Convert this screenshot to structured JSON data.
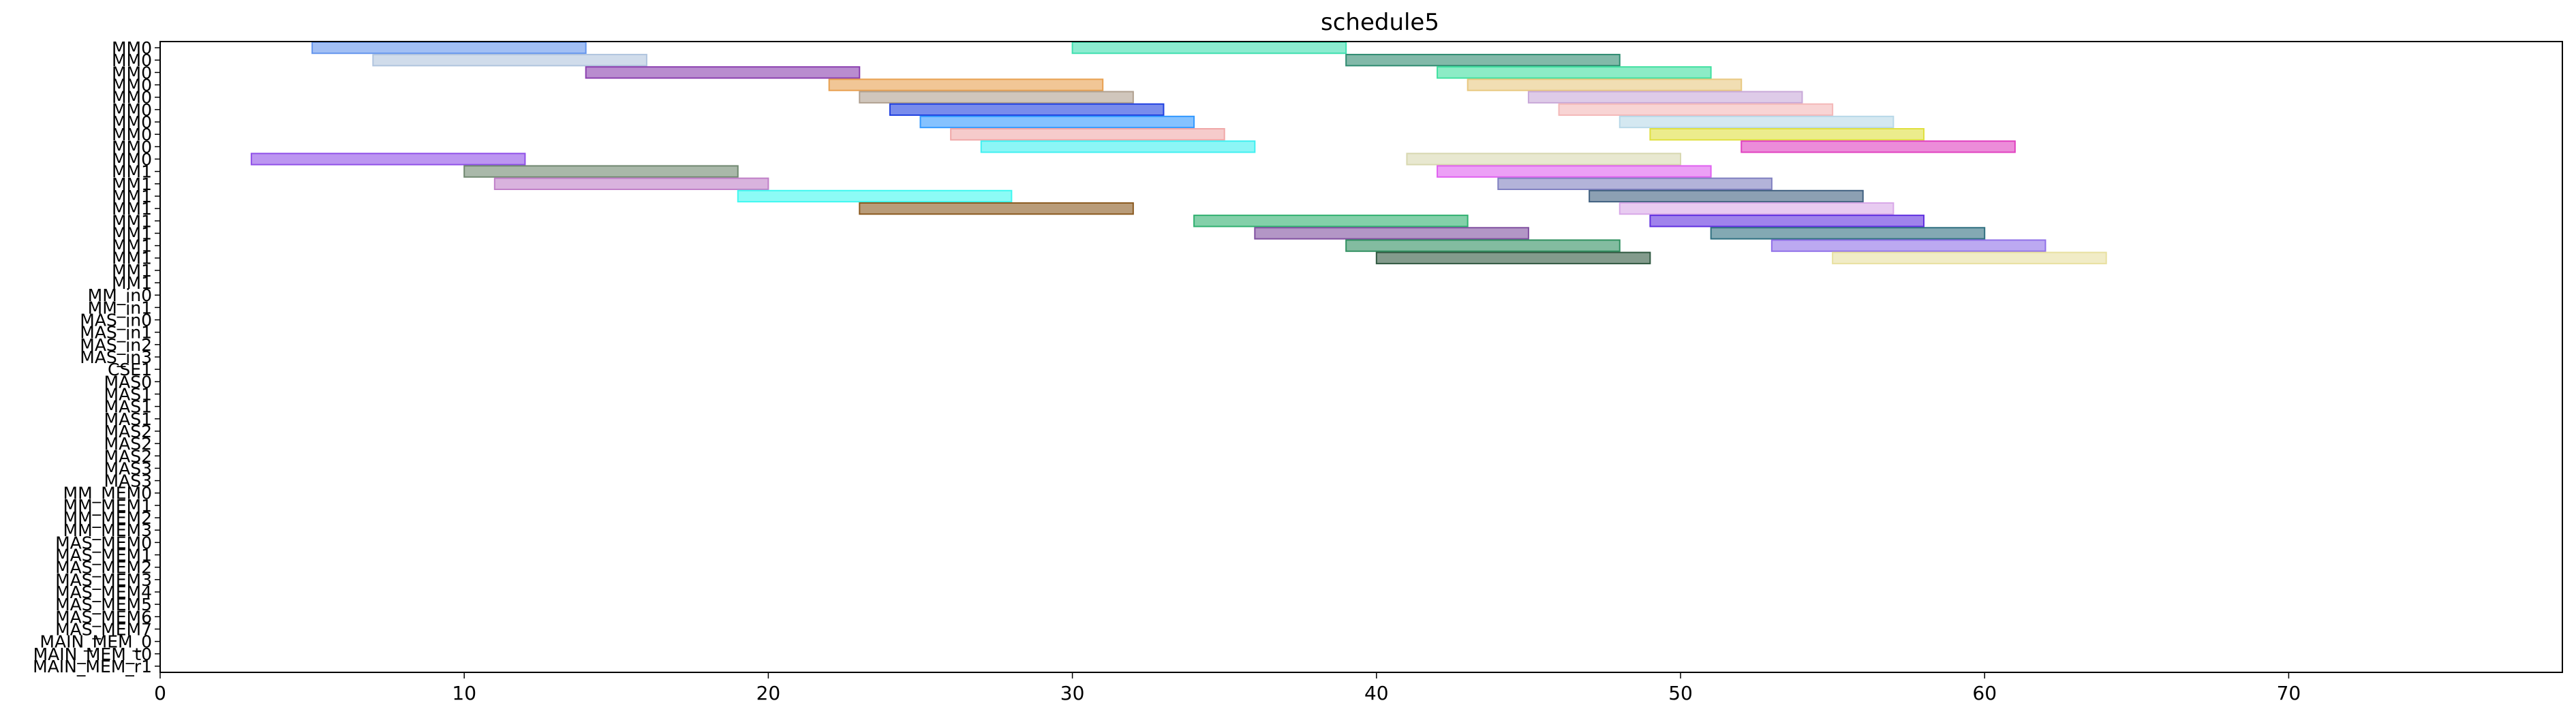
{
  "chart_data": {
    "type": "gantt",
    "title": "schedule5",
    "xlim": [
      0,
      79
    ],
    "xticks": [
      0,
      10,
      20,
      30,
      40,
      50,
      60,
      70
    ],
    "rows": [
      "MM0",
      "MM0",
      "MM0",
      "MM0",
      "MM0",
      "MM0",
      "MM0",
      "MM0",
      "MM0",
      "MM0",
      "MM1",
      "MM1",
      "MM1",
      "MM1",
      "MM1",
      "MM1",
      "MM1",
      "MM1",
      "MM1",
      "MM1",
      "MM_in0",
      "MM_in1",
      "MAS_in0",
      "MAS_in1",
      "MAS_in2",
      "MAS_in3",
      "CSE1",
      "MAS0",
      "MAS1",
      "MAS1",
      "MAS1",
      "MAS2",
      "MAS2",
      "MAS2",
      "MAS3",
      "MAS3",
      "MM_MEM0",
      "MM_MEM1",
      "MM_MEM2",
      "MM_MEM3",
      "MAS_MEM0",
      "MAS_MEM1",
      "MAS_MEM2",
      "MAS_MEM3",
      "MAS_MEM4",
      "MAS_MEM5",
      "MAS_MEM6",
      "MAS_MEM7",
      "MAIN_MEM_0",
      "MAIN_MEM_t0",
      "MAIN_MEM_r1"
    ],
    "tasks": [
      {
        "row": 0,
        "start": 5,
        "end": 14,
        "color": "#6495ED"
      },
      {
        "row": 0,
        "start": 30,
        "end": 39,
        "color": "#40E0B0"
      },
      {
        "row": 1,
        "start": 7,
        "end": 16,
        "color": "#B0C4DE"
      },
      {
        "row": 1,
        "start": 39,
        "end": 48,
        "color": "#2E8B70"
      },
      {
        "row": 2,
        "start": 14,
        "end": 23,
        "color": "#8B3FAF"
      },
      {
        "row": 2,
        "start": 42,
        "end": 51,
        "color": "#40E0A0"
      },
      {
        "row": 3,
        "start": 22,
        "end": 31,
        "color": "#E8A050"
      },
      {
        "row": 3,
        "start": 43,
        "end": 52,
        "color": "#E8C880"
      },
      {
        "row": 4,
        "start": 23,
        "end": 32,
        "color": "#B0A090"
      },
      {
        "row": 4,
        "start": 45,
        "end": 54,
        "color": "#C8A8D8"
      },
      {
        "row": 5,
        "start": 24,
        "end": 33,
        "color": "#2040E0"
      },
      {
        "row": 5,
        "start": 46,
        "end": 55,
        "color": "#F4B8B8"
      },
      {
        "row": 6,
        "start": 25,
        "end": 34,
        "color": "#3399FF"
      },
      {
        "row": 6,
        "start": 48,
        "end": 57,
        "color": "#B8D8E8"
      },
      {
        "row": 7,
        "start": 26,
        "end": 35,
        "color": "#F0A8A8"
      },
      {
        "row": 7,
        "start": 49,
        "end": 58,
        "color": "#E0E040"
      },
      {
        "row": 8,
        "start": 27,
        "end": 36,
        "color": "#40F0F0"
      },
      {
        "row": 8,
        "start": 52,
        "end": 61,
        "color": "#E040C0"
      },
      {
        "row": 9,
        "start": 3,
        "end": 12,
        "color": "#9050E8"
      },
      {
        "row": 9,
        "start": 41,
        "end": 50,
        "color": "#D8D8B0"
      },
      {
        "row": 10,
        "start": 10,
        "end": 19,
        "color": "#708870"
      },
      {
        "row": 10,
        "start": 42,
        "end": 51,
        "color": "#E060F0"
      },
      {
        "row": 11,
        "start": 11,
        "end": 20,
        "color": "#C080C8"
      },
      {
        "row": 11,
        "start": 44,
        "end": 53,
        "color": "#8080C0"
      },
      {
        "row": 12,
        "start": 19,
        "end": 28,
        "color": "#40F8F0"
      },
      {
        "row": 12,
        "start": 47,
        "end": 56,
        "color": "#406080"
      },
      {
        "row": 13,
        "start": 23,
        "end": 32,
        "color": "#8B5A20"
      },
      {
        "row": 13,
        "start": 48,
        "end": 57,
        "color": "#D8A8E8"
      },
      {
        "row": 14,
        "start": 34,
        "end": 43,
        "color": "#30B070"
      },
      {
        "row": 14,
        "start": 49,
        "end": 58,
        "color": "#6030E0"
      },
      {
        "row": 15,
        "start": 36,
        "end": 45,
        "color": "#8050A0"
      },
      {
        "row": 15,
        "start": 51,
        "end": 60,
        "color": "#307080"
      },
      {
        "row": 16,
        "start": 39,
        "end": 48,
        "color": "#309060"
      },
      {
        "row": 16,
        "start": 53,
        "end": 62,
        "color": "#9070E8"
      },
      {
        "row": 17,
        "start": 40,
        "end": 49,
        "color": "#305840"
      },
      {
        "row": 17,
        "start": 55,
        "end": 64,
        "color": "#E8E0A0"
      }
    ],
    "xlabel": "",
    "ylabel": ""
  }
}
